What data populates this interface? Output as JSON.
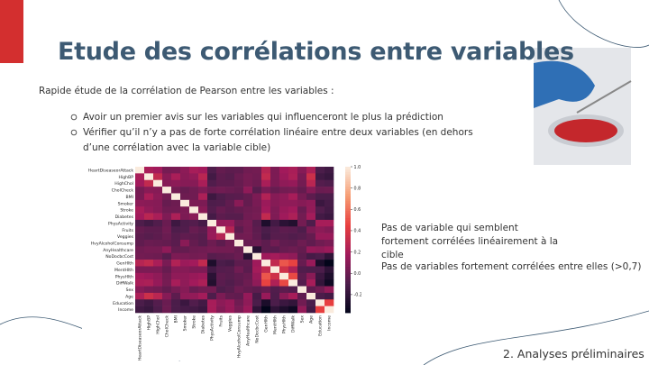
{
  "header": {
    "title": "Etude des corrélations entre variables"
  },
  "intro": "Rapide étude de la corrélation de Pearson entre les variables :",
  "bullets": [
    "Avoir un premier avis sur les variables qui influenceront le plus la prédiction",
    "Vérifier qu’il n’y a pas de forte corrélation linéaire entre deux variables (en dehors d’une corrélation avec la variable cible)"
  ],
  "notes": [
    "Pas de variable qui semblent fortement corrélées linéairement à la cible",
    "Pas de variables fortement corrélées entre elles (>0,7)"
  ],
  "footer": "2. Analyses préliminaires",
  "chart_data": {
    "type": "heatmap",
    "variables": [
      "HeartDiseaseorAttack",
      "HighBP",
      "HighChol",
      "CholCheck",
      "BMI",
      "Smoker",
      "Stroke",
      "Diabetes",
      "PhysActivity",
      "Fruits",
      "Veggies",
      "HvyAlcoholConsump",
      "AnyHealthcare",
      "NoDocbcCost",
      "GenHlth",
      "MentHlth",
      "PhysHlth",
      "DiffWalk",
      "Sex",
      "Age",
      "Education",
      "Income"
    ],
    "values": [
      [
        1,
        0.21,
        0.18,
        0.04,
        0.05,
        0.11,
        0.2,
        0.18,
        -0.09,
        -0.02,
        -0.04,
        -0.03,
        0.02,
        0.03,
        0.26,
        0.06,
        0.18,
        0.21,
        0.09,
        0.22,
        -0.1,
        -0.14
      ],
      [
        0.21,
        1,
        0.3,
        0.1,
        0.21,
        0.1,
        0.13,
        0.27,
        -0.13,
        -0.04,
        -0.06,
        0,
        0.04,
        0.02,
        0.3,
        0.06,
        0.16,
        0.22,
        0.05,
        0.34,
        -0.14,
        -0.17
      ],
      [
        0.18,
        0.3,
        1,
        0.09,
        0.11,
        0.09,
        0.09,
        0.21,
        -0.08,
        -0.04,
        -0.04,
        -0.01,
        0.04,
        0.01,
        0.21,
        0.06,
        0.12,
        0.14,
        0.03,
        0.27,
        -0.07,
        -0.09
      ],
      [
        0.04,
        0.1,
        0.09,
        1,
        0.03,
        -0.01,
        0.02,
        0.07,
        0,
        0.02,
        0,
        -0.02,
        0.12,
        -0.06,
        0.05,
        -0.01,
        0.03,
        0.04,
        -0.02,
        0.09,
        0,
        0.01
      ],
      [
        0.05,
        0.21,
        0.11,
        0.03,
        1,
        0.01,
        0.02,
        0.22,
        -0.15,
        -0.09,
        -0.06,
        -0.05,
        -0.02,
        0.06,
        0.24,
        0.09,
        0.12,
        0.2,
        0.04,
        -0.04,
        -0.1,
        -0.1
      ],
      [
        0.11,
        0.1,
        0.09,
        -0.01,
        0.01,
        1,
        0.06,
        0.06,
        -0.09,
        -0.08,
        -0.03,
        0.1,
        -0.02,
        0.05,
        0.16,
        0.09,
        0.12,
        0.12,
        0.09,
        0.12,
        -0.16,
        -0.12
      ],
      [
        0.2,
        0.13,
        0.09,
        0.02,
        0.02,
        0.06,
        1,
        0.1,
        -0.07,
        -0.01,
        -0.04,
        -0.02,
        0.01,
        0.03,
        0.18,
        0.07,
        0.15,
        0.18,
        0,
        0.13,
        -0.08,
        -0.13
      ],
      [
        0.18,
        0.27,
        0.21,
        0.07,
        0.22,
        0.06,
        0.1,
        1,
        -0.12,
        -0.04,
        -0.06,
        -0.06,
        0.02,
        0.04,
        0.3,
        0.07,
        0.17,
        0.22,
        0.03,
        0.19,
        -0.13,
        -0.16
      ],
      [
        -0.09,
        -0.13,
        -0.08,
        0,
        -0.15,
        -0.09,
        -0.07,
        -0.12,
        1,
        0.14,
        0.15,
        0.01,
        0.04,
        -0.06,
        -0.27,
        -0.13,
        -0.22,
        -0.25,
        0.03,
        -0.09,
        0.2,
        0.2
      ],
      [
        -0.02,
        -0.04,
        -0.04,
        0.02,
        -0.09,
        -0.08,
        -0.01,
        -0.04,
        0.14,
        1,
        0.25,
        -0.04,
        0.03,
        -0.04,
        -0.1,
        -0.07,
        -0.04,
        -0.05,
        -0.09,
        0.06,
        0.11,
        0.08
      ],
      [
        -0.04,
        -0.06,
        -0.04,
        0,
        -0.06,
        -0.03,
        -0.04,
        -0.06,
        0.15,
        0.25,
        1,
        0.02,
        0.03,
        -0.03,
        -0.12,
        -0.06,
        -0.06,
        -0.08,
        -0.06,
        -0.02,
        0.15,
        0.15
      ],
      [
        -0.03,
        0,
        -0.01,
        -0.02,
        -0.05,
        0.1,
        -0.02,
        -0.06,
        0.01,
        -0.04,
        0.02,
        1,
        -0.01,
        0,
        -0.04,
        0.02,
        -0.03,
        -0.04,
        0.01,
        -0.03,
        0.02,
        0.05
      ],
      [
        0.02,
        0.04,
        0.04,
        0.12,
        -0.02,
        -0.02,
        0.01,
        0.02,
        0.04,
        0.03,
        0.03,
        -0.01,
        1,
        -0.23,
        -0.04,
        -0.05,
        -0.01,
        0.01,
        -0.02,
        0.14,
        0.12,
        0.16
      ],
      [
        0.03,
        0.02,
        0.01,
        -0.06,
        0.06,
        0.05,
        0.03,
        0.04,
        -0.06,
        -0.04,
        -0.03,
        0,
        -0.23,
        1,
        0.17,
        0.19,
        0.15,
        0.12,
        -0.04,
        -0.12,
        -0.1,
        -0.2
      ],
      [
        0.26,
        0.3,
        0.21,
        0.05,
        0.24,
        0.16,
        0.18,
        0.3,
        -0.27,
        -0.1,
        -0.12,
        -0.04,
        -0.04,
        0.17,
        1,
        0.3,
        0.52,
        0.46,
        -0.01,
        0.15,
        -0.28,
        -0.37
      ],
      [
        0.06,
        0.06,
        0.06,
        -0.01,
        0.09,
        0.09,
        0.07,
        0.07,
        -0.13,
        -0.07,
        -0.06,
        0.02,
        -0.05,
        0.19,
        0.3,
        1,
        0.35,
        0.23,
        -0.08,
        -0.09,
        -0.1,
        -0.21
      ],
      [
        0.18,
        0.16,
        0.12,
        0.03,
        0.12,
        0.12,
        0.15,
        0.17,
        -0.22,
        -0.04,
        -0.06,
        -0.03,
        -0.01,
        0.15,
        0.52,
        0.35,
        1,
        0.48,
        -0.04,
        0.1,
        -0.16,
        -0.27
      ],
      [
        0.21,
        0.22,
        0.14,
        0.04,
        0.2,
        0.12,
        0.18,
        0.22,
        -0.25,
        -0.05,
        -0.08,
        -0.04,
        0.01,
        0.12,
        0.46,
        0.23,
        0.48,
        1,
        -0.07,
        0.2,
        -0.19,
        -0.32
      ],
      [
        0.09,
        0.05,
        0.03,
        -0.02,
        0.04,
        0.09,
        0,
        0.03,
        0.03,
        -0.09,
        -0.06,
        0.01,
        -0.02,
        -0.04,
        -0.01,
        -0.08,
        -0.04,
        -0.07,
        1,
        -0.03,
        0.02,
        0.13
      ],
      [
        0.22,
        0.34,
        0.27,
        0.09,
        -0.04,
        0.12,
        0.13,
        0.19,
        -0.09,
        0.06,
        -0.02,
        -0.03,
        0.14,
        -0.12,
        0.15,
        -0.09,
        0.1,
        0.2,
        -0.03,
        1,
        -0.1,
        -0.13
      ],
      [
        -0.1,
        -0.14,
        -0.07,
        0,
        -0.1,
        -0.16,
        -0.08,
        -0.13,
        0.2,
        0.11,
        0.15,
        0.02,
        0.12,
        -0.1,
        -0.28,
        -0.1,
        -0.16,
        -0.19,
        0.02,
        -0.1,
        1,
        0.45
      ],
      [
        -0.14,
        -0.17,
        -0.09,
        0.01,
        -0.1,
        -0.12,
        -0.13,
        -0.16,
        0.2,
        0.08,
        0.15,
        0.05,
        0.16,
        -0.2,
        -0.37,
        -0.21,
        -0.27,
        -0.32,
        0.13,
        -0.13,
        0.45,
        1
      ]
    ],
    "clim": [
      -0.37,
      1
    ],
    "cticks": [
      {
        "value": 1,
        "label": "1.0"
      },
      0.8,
      0.6,
      0.4,
      0.2,
      {
        "value": 0,
        "label": "0.0"
      },
      -0.2
    ]
  }
}
